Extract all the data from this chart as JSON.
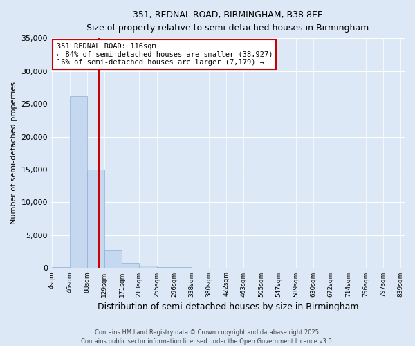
{
  "title1": "351, REDNAL ROAD, BIRMINGHAM, B38 8EE",
  "title2": "Size of property relative to semi-detached houses in Birmingham",
  "xlabel": "Distribution of semi-detached houses by size in Birmingham",
  "ylabel": "Number of semi-detached properties",
  "annotation_title": "351 REDNAL ROAD: 116sqm",
  "annotation_line1": "← 84% of semi-detached houses are smaller (38,927)",
  "annotation_line2": "16% of semi-detached houses are larger (7,179) →",
  "property_size": 116,
  "bins": [
    4,
    46,
    88,
    129,
    171,
    213,
    255,
    296,
    338,
    380,
    422,
    463,
    505,
    547,
    589,
    630,
    672,
    714,
    756,
    797,
    839
  ],
  "bar_values": [
    150,
    26200,
    15000,
    2800,
    800,
    350,
    200,
    120,
    80,
    60,
    40,
    30,
    20,
    15,
    12,
    10,
    8,
    6,
    5,
    4
  ],
  "bar_color": "#c5d8f0",
  "bar_edge_color": "#8ab0d8",
  "line_color": "#cc0000",
  "annotation_box_color": "#cc0000",
  "background_color": "#dce8f5",
  "grid_color": "#ffffff",
  "ylim": [
    0,
    35000
  ],
  "yticks": [
    0,
    5000,
    10000,
    15000,
    20000,
    25000,
    30000,
    35000
  ],
  "footer1": "Contains HM Land Registry data © Crown copyright and database right 2025.",
  "footer2": "Contains public sector information licensed under the Open Government Licence v3.0."
}
